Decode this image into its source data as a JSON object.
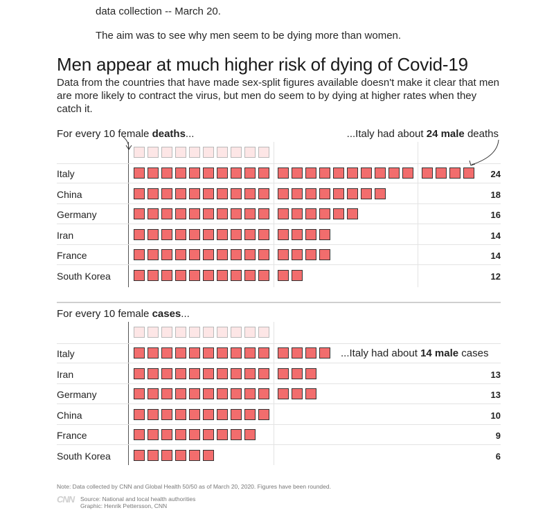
{
  "article": {
    "line1": "data collection -- March 20.",
    "line2": "The aim was to see why men seem to be dying more than women."
  },
  "header": {
    "title": "Men appear at much higher risk of dying of Covid-19",
    "subtitle": "Data from the countries that have made sex-split figures available doesn't make it clear that men are more likely to contract the virus, but men do seem to by dying at higher rates when they catch it."
  },
  "chart_data": [
    {
      "type": "bar",
      "section_label": {
        "prefix": "For every 10 female ",
        "bold": "deaths",
        "suffix": "..."
      },
      "annotation": {
        "prefix": "...Italy had about ",
        "bold": "24 male",
        "suffix": " deaths"
      },
      "reference": 10,
      "categories": [
        "Italy",
        "China",
        "Germany",
        "Iran",
        "France",
        "South Korea"
      ],
      "values": [
        24,
        18,
        16,
        14,
        14,
        12
      ],
      "labels": [
        "24",
        "18",
        "16",
        "14",
        "14",
        "12"
      ],
      "show_value_labels": [
        true,
        true,
        true,
        true,
        true,
        true
      ]
    },
    {
      "type": "bar",
      "section_label": {
        "prefix": "For every 10 female ",
        "bold": "cases",
        "suffix": "..."
      },
      "annotation": {
        "prefix": "...Italy had about ",
        "bold": "14 male",
        "suffix": " cases"
      },
      "reference": 10,
      "categories": [
        "Italy",
        "Iran",
        "Germany",
        "China",
        "France",
        "South Korea"
      ],
      "values": [
        14,
        13,
        13,
        10,
        9,
        6
      ],
      "labels": [
        "",
        "13",
        "13",
        "10",
        "9",
        "6"
      ],
      "show_value_labels": [
        false,
        true,
        true,
        true,
        true,
        true
      ]
    }
  ],
  "colors": {
    "male_square": "#f26d6d",
    "female_square": "#fde6e6",
    "border": "#333333"
  },
  "footer": {
    "note": "Note: Data collected by CNN and Global Health 50/50 as of March 20, 2020. Figures have been rounded.",
    "logo": "CNN",
    "source": "Source: National and local health authorities",
    "graphic": "Graphic: Henrik Pettersson, CNN"
  }
}
